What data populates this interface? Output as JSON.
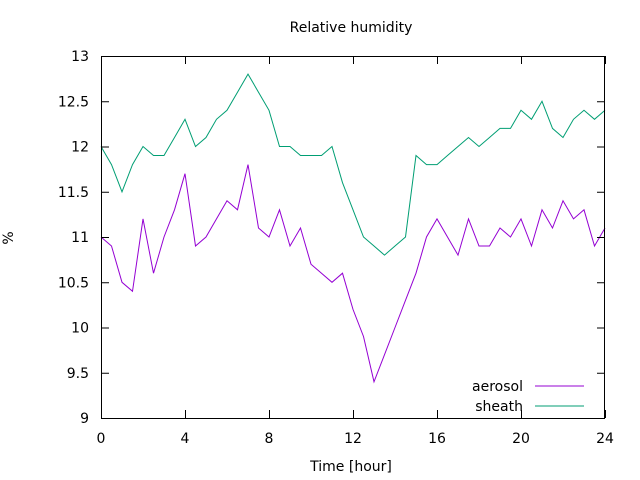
{
  "chart_data": {
    "type": "line",
    "title": "Relative humidity",
    "xlabel": "Time [hour]",
    "ylabel": "%",
    "xlim": [
      0,
      24
    ],
    "ylim": [
      9,
      13
    ],
    "xticks": [
      0,
      4,
      8,
      12,
      16,
      20,
      24
    ],
    "yticks": [
      9,
      9.5,
      10,
      10.5,
      11,
      11.5,
      12,
      12.5,
      13
    ],
    "ytick_labels": [
      "9",
      "9.5",
      "10",
      "10.5",
      "11",
      "11.5",
      "12",
      "12.5",
      "13"
    ],
    "grid": false,
    "legend": "bottom-right",
    "series": [
      {
        "name": "aerosol",
        "color": "#9400d3",
        "x": [
          0,
          0.5,
          1,
          1.5,
          2,
          2.5,
          3,
          3.5,
          4,
          4.5,
          5,
          5.5,
          6,
          6.5,
          7,
          7.5,
          8,
          8.5,
          9,
          9.5,
          10,
          10.5,
          11,
          11.5,
          12,
          12.5,
          13,
          13.5,
          14,
          14.5,
          15,
          15.5,
          16,
          16.5,
          17,
          17.5,
          18,
          18.5,
          19,
          19.5,
          20,
          20.5,
          21,
          21.5,
          22,
          22.5,
          23,
          23.5,
          24
        ],
        "y": [
          11.0,
          10.9,
          10.5,
          10.4,
          11.2,
          10.6,
          11.0,
          11.3,
          11.7,
          10.9,
          11.0,
          11.2,
          11.4,
          11.3,
          11.8,
          11.1,
          11.0,
          11.3,
          10.9,
          11.1,
          10.7,
          10.6,
          10.5,
          10.6,
          10.2,
          9.9,
          9.4,
          9.7,
          10.0,
          10.3,
          10.6,
          11.0,
          11.2,
          11.0,
          10.8,
          11.2,
          10.9,
          10.9,
          11.1,
          11.0,
          11.2,
          10.9,
          11.3,
          11.1,
          11.4,
          11.2,
          11.3,
          10.9,
          11.1
        ]
      },
      {
        "name": "sheath",
        "color": "#009e73",
        "x": [
          0,
          0.5,
          1,
          1.5,
          2,
          2.5,
          3,
          3.5,
          4,
          4.5,
          5,
          5.5,
          6,
          6.5,
          7,
          7.5,
          8,
          8.5,
          9,
          9.5,
          10,
          10.5,
          11,
          11.5,
          12,
          12.5,
          13,
          13.5,
          14,
          14.5,
          15,
          15.5,
          16,
          16.5,
          17,
          17.5,
          18,
          18.5,
          19,
          19.5,
          20,
          20.5,
          21,
          21.5,
          22,
          22.5,
          23,
          23.5,
          24
        ],
        "y": [
          12.0,
          11.8,
          11.5,
          11.8,
          12.0,
          11.9,
          11.9,
          12.1,
          12.3,
          12.0,
          12.1,
          12.3,
          12.4,
          12.6,
          12.8,
          12.6,
          12.4,
          12.0,
          12.0,
          11.9,
          11.9,
          11.9,
          12.0,
          11.6,
          11.3,
          11.0,
          10.9,
          10.8,
          10.9,
          11.0,
          11.9,
          11.8,
          11.8,
          11.9,
          12.0,
          12.1,
          12.0,
          12.1,
          12.2,
          12.2,
          12.4,
          12.3,
          12.5,
          12.2,
          12.1,
          12.3,
          12.4,
          12.3,
          12.4
        ]
      }
    ]
  }
}
